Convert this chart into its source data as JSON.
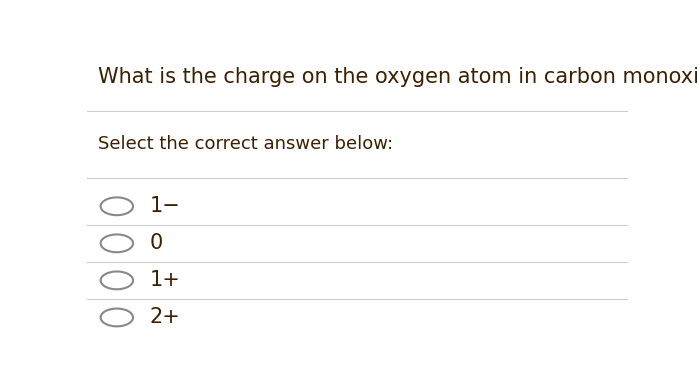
{
  "title": "What is the charge on the oxygen atom in carbon monoxide?",
  "subtitle": "Select the correct answer below:",
  "options": [
    "1−",
    "0",
    "1+",
    "2+"
  ],
  "background_color": "#ffffff",
  "text_color": "#3d2000",
  "line_color": "#cccccc",
  "circle_color": "#888888",
  "title_fontsize": 15,
  "subtitle_fontsize": 13,
  "option_fontsize": 15,
  "fig_width": 6.97,
  "fig_height": 3.85
}
